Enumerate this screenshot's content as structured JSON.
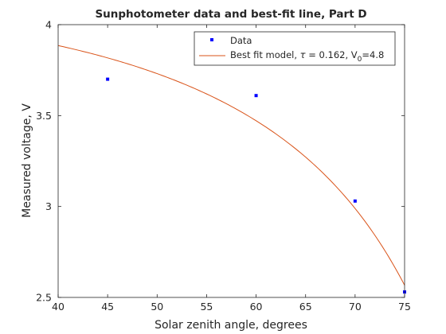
{
  "chart_data": {
    "type": "scatter",
    "title": "Sunphotometer data and best-fit line, Part D",
    "xlabel": "Solar zenith angle, degrees",
    "ylabel": "Measured voltage, V",
    "xlim": [
      40,
      75
    ],
    "ylim": [
      2.5,
      4
    ],
    "xticks": [
      40,
      45,
      50,
      55,
      60,
      65,
      70,
      75
    ],
    "yticks": [
      2.5,
      3,
      3.5,
      4
    ],
    "xtick_labels": [
      "40",
      "45",
      "50",
      "55",
      "60",
      "65",
      "70",
      "75"
    ],
    "ytick_labels": [
      "2.5",
      "3",
      "3.5",
      "4"
    ],
    "grid": false,
    "legend_position": "top-right",
    "series": [
      {
        "name": "Data",
        "kind": "markers",
        "color": "#0000ff",
        "x": [
          45,
          60,
          70,
          75
        ],
        "y": [
          3.7,
          3.61,
          3.03,
          2.53
        ]
      },
      {
        "name": "Best fit model",
        "kind": "line",
        "color": "#d95319",
        "model": "V = V0 * exp(-tau / cos(zenith))",
        "tau": 0.162,
        "V0": 4.8
      }
    ],
    "legend": {
      "data_label": "Data",
      "fit_prefix": "Best fit model, ",
      "tau_symbol": "τ",
      "fit_tau_text": " = 0.162, V",
      "fit_subscript": "0",
      "fit_suffix": "=4.8"
    }
  }
}
